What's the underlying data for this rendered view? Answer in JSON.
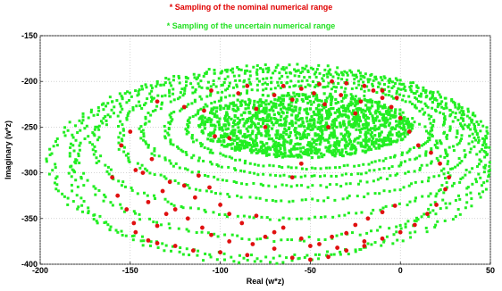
{
  "chart_data": {
    "type": "scatter",
    "title": "",
    "xlabel": "Real (w*z)",
    "ylabel": "Imaginary (w*z)",
    "xlim": [
      -200,
      50
    ],
    "ylim": [
      -400,
      -150
    ],
    "x_ticks": [
      "-200",
      "-150",
      "-100",
      "-50",
      "0",
      "50"
    ],
    "y_ticks": [
      "-150",
      "-200",
      "-250",
      "-300",
      "-350",
      "-400"
    ],
    "grid": true,
    "legend_position": "top-center",
    "series": [
      {
        "name": "* Sampling of the nominal numerical range",
        "color": "#e01010",
        "marker": "circle",
        "values": [
          [
            -38,
            -200
          ],
          [
            -30,
            -202
          ],
          [
            -20,
            -205
          ],
          [
            -10,
            -210
          ],
          [
            -2,
            -218
          ],
          [
            -45,
            -203
          ],
          [
            -55,
            -208
          ],
          [
            -70,
            -215
          ],
          [
            -90,
            -213
          ],
          [
            -105,
            -210
          ],
          [
            -120,
            -228
          ],
          [
            -135,
            -222
          ],
          [
            -150,
            -255
          ],
          [
            -155,
            -270
          ],
          [
            -147,
            -297
          ],
          [
            -160,
            -305
          ],
          [
            -157,
            -325
          ],
          [
            -152,
            -340
          ],
          [
            -148,
            -355
          ],
          [
            -147,
            -365
          ],
          [
            -140,
            -374
          ],
          [
            -135,
            -377
          ],
          [
            -125,
            -380
          ],
          [
            -115,
            -385
          ],
          [
            -100,
            -387
          ],
          [
            -85,
            -390
          ],
          [
            -60,
            -393
          ],
          [
            -50,
            -395
          ],
          [
            -40,
            -392
          ],
          [
            -30,
            -385
          ],
          [
            -20,
            -380
          ],
          [
            -10,
            -372
          ],
          [
            0,
            -365
          ],
          [
            8,
            -357
          ],
          [
            15,
            -345
          ],
          [
            20,
            -335
          ],
          [
            25,
            -318
          ],
          [
            27,
            -305
          ],
          [
            22,
            -290
          ],
          [
            17,
            -278
          ],
          [
            10,
            -270
          ],
          [
            5,
            -255
          ],
          [
            0,
            -240
          ],
          [
            -5,
            -228
          ],
          [
            -10,
            -218
          ],
          [
            -15,
            -210
          ],
          [
            -25,
            -235
          ],
          [
            -40,
            -250
          ],
          [
            -55,
            -290
          ],
          [
            -60,
            -305
          ],
          [
            -75,
            -250
          ],
          [
            -80,
            -230
          ],
          [
            -95,
            -262
          ],
          [
            -103,
            -260
          ],
          [
            -109,
            -232
          ],
          [
            -112,
            -303
          ],
          [
            -120,
            -314
          ],
          [
            -114,
            -327
          ],
          [
            -106,
            -316
          ],
          [
            -100,
            -335
          ],
          [
            -95,
            -345
          ],
          [
            -88,
            -355
          ],
          [
            -80,
            -347
          ],
          [
            -75,
            -370
          ],
          [
            -70,
            -365
          ],
          [
            -65,
            -360
          ],
          [
            -55,
            -372
          ],
          [
            -45,
            -378
          ],
          [
            -38,
            -370
          ],
          [
            -30,
            -366
          ],
          [
            -25,
            -357
          ],
          [
            -18,
            -350
          ],
          [
            -10,
            -343
          ],
          [
            -3,
            -336
          ],
          [
            -135,
            -358
          ],
          [
            -130,
            -345
          ],
          [
            -125,
            -340
          ],
          [
            -118,
            -350
          ],
          [
            -110,
            -360
          ],
          [
            -105,
            -368
          ],
          [
            -95,
            -375
          ],
          [
            -82,
            -378
          ],
          [
            -70,
            -383
          ],
          [
            -50,
            -380
          ],
          [
            -35,
            -382
          ],
          [
            -20,
            -375
          ],
          [
            -140,
            -332
          ],
          [
            -132,
            -320
          ],
          [
            -128,
            -310
          ],
          [
            -143,
            -300
          ],
          [
            -138,
            -285
          ],
          [
            -85,
            -205
          ],
          [
            -65,
            -205
          ],
          [
            -48,
            -213
          ],
          [
            -33,
            -215
          ],
          [
            -22,
            -222
          ],
          [
            -42,
            -225
          ],
          [
            -60,
            -220
          ]
        ]
      },
      {
        "name": "* Sampling of the uncertain numerical range",
        "color": "#22ee22",
        "marker": "square",
        "values": []
      }
    ]
  }
}
